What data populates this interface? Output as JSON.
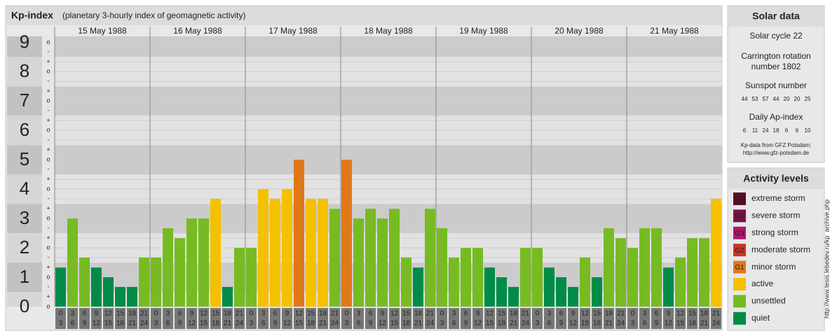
{
  "chart_data": {
    "type": "bar",
    "title": "Kp-index",
    "subtitle": "(planetary 3-hourly index of geomagnetic activity)",
    "days": [
      "15 May 1988",
      "16 May 1988",
      "17 May 1988",
      "18 May 1988",
      "19 May 1988",
      "20 May 1988",
      "21 May 1988"
    ],
    "hour_ranges": [
      [
        0,
        3
      ],
      [
        3,
        6
      ],
      [
        6,
        9
      ],
      [
        9,
        12
      ],
      [
        12,
        15
      ],
      [
        15,
        18
      ],
      [
        18,
        21
      ],
      [
        21,
        24
      ]
    ],
    "values": [
      1.33,
      3,
      1.67,
      1.33,
      1,
      0.67,
      0.67,
      1.67,
      1.67,
      2.67,
      2.33,
      3,
      3,
      3.67,
      0.67,
      2,
      2,
      4,
      3.67,
      4,
      5,
      3.67,
      3.67,
      3.33,
      5,
      3,
      3.33,
      3,
      3.33,
      1.67,
      1.33,
      3.33,
      2.67,
      1.67,
      2,
      2,
      1.33,
      1,
      0.67,
      2,
      2,
      1.33,
      1,
      0.67,
      1.67,
      1,
      2.67,
      2.33,
      2,
      2.67,
      2.67,
      1.33,
      1.67,
      2.33,
      2.33,
      3.67
    ],
    "colors": [
      "#008c48",
      "#77bb22",
      "#77bb22",
      "#008c48",
      "#008c48",
      "#008c48",
      "#008c48",
      "#77bb22",
      "#77bb22",
      "#77bb22",
      "#77bb22",
      "#77bb22",
      "#77bb22",
      "#f5c000",
      "#008c48",
      "#77bb22",
      "#77bb22",
      "#f5c000",
      "#f5c000",
      "#f5c000",
      "#e07818",
      "#f5c000",
      "#f5c000",
      "#77bb22",
      "#e07818",
      "#77bb22",
      "#77bb22",
      "#77bb22",
      "#77bb22",
      "#77bb22",
      "#008c48",
      "#77bb22",
      "#77bb22",
      "#77bb22",
      "#77bb22",
      "#77bb22",
      "#008c48",
      "#008c48",
      "#008c48",
      "#77bb22",
      "#77bb22",
      "#008c48",
      "#008c48",
      "#008c48",
      "#77bb22",
      "#008c48",
      "#77bb22",
      "#77bb22",
      "#77bb22",
      "#77bb22",
      "#77bb22",
      "#008c48",
      "#77bb22",
      "#77bb22",
      "#77bb22",
      "#f5c000"
    ],
    "ylim": [
      0,
      9.2
    ],
    "yticks": [
      0,
      1,
      2,
      3,
      4,
      5,
      6,
      7,
      8,
      9
    ],
    "yminor_ticks": [
      {
        "value": 0,
        "label": "o"
      },
      {
        "value": 0.33,
        "label": "+"
      },
      {
        "value": 0.67,
        "label": "-"
      },
      {
        "value": 1,
        "label": "o"
      },
      {
        "value": 1.33,
        "label": "+"
      },
      {
        "value": 1.67,
        "label": "-"
      },
      {
        "value": 2,
        "label": "o"
      },
      {
        "value": 2.33,
        "label": "+"
      },
      {
        "value": 2.67,
        "label": "-"
      },
      {
        "value": 3,
        "label": "o"
      },
      {
        "value": 3.33,
        "label": "+"
      },
      {
        "value": 3.67,
        "label": "-"
      },
      {
        "value": 4,
        "label": "o"
      },
      {
        "value": 4.33,
        "label": "+"
      },
      {
        "value": 4.67,
        "label": "-"
      },
      {
        "value": 5,
        "label": "o"
      },
      {
        "value": 5.33,
        "label": "+"
      },
      {
        "value": 5.67,
        "label": "-"
      },
      {
        "value": 6,
        "label": "o"
      },
      {
        "value": 6.33,
        "label": "+"
      },
      {
        "value": 6.67,
        "label": "-"
      },
      {
        "value": 7,
        "label": "o"
      },
      {
        "value": 7.33,
        "label": "+"
      },
      {
        "value": 7.67,
        "label": "-"
      },
      {
        "value": 8,
        "label": "o"
      },
      {
        "value": 8.33,
        "label": "+"
      },
      {
        "value": 8.67,
        "label": "-"
      },
      {
        "value": 9,
        "label": "o"
      }
    ],
    "grid": true
  },
  "solar_data": {
    "title": "Solar data",
    "cycle": "Solar cycle 22",
    "carrington": [
      "Carrington rotation",
      "number 1802"
    ],
    "sunspot_title": "Sunspot number",
    "sunspot": [
      44,
      53,
      57,
      44,
      20,
      20,
      25
    ],
    "ap_title": "Daily Ap-index",
    "ap": [
      6,
      11,
      24,
      18,
      6,
      6,
      10
    ],
    "source": [
      "Kp-data from GFZ Potsdam:",
      "http://www.gfz-potsdam.de"
    ]
  },
  "activity_levels": {
    "title": "Activity levels",
    "items": [
      {
        "badge": "G5",
        "label": "extreme storm",
        "color": "#5a0a2a"
      },
      {
        "badge": "G4",
        "label": "severe storm",
        "color": "#7a1046"
      },
      {
        "badge": "G3",
        "label": "strong storm",
        "color": "#b0186a"
      },
      {
        "badge": "G2",
        "label": "moderate storm",
        "color": "#cc3322"
      },
      {
        "badge": "G1",
        "label": "minor storm",
        "color": "#e07818"
      },
      {
        "label": "active",
        "color": "#f5c000"
      },
      {
        "label": "unsettled",
        "color": "#77bb22"
      },
      {
        "label": "quiet",
        "color": "#008c48"
      }
    ]
  },
  "credit": "http://www.tesis.lebedev.ru/kp_archive.php"
}
